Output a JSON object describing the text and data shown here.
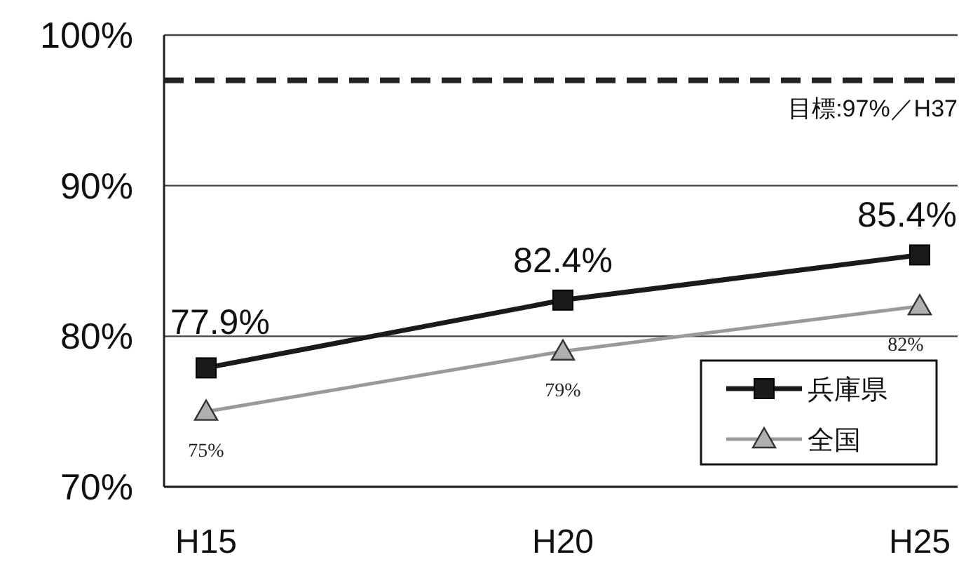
{
  "chart_data": {
    "type": "line",
    "categories": [
      "H15",
      "H20",
      "H25"
    ],
    "series": [
      {
        "name": "兵庫県",
        "color": "#1a1a1a",
        "marker": "square",
        "values": [
          77.9,
          82.4,
          85.4
        ],
        "value_labels": [
          "77.9%",
          "82.4%",
          "85.4%"
        ]
      },
      {
        "name": "全国",
        "color": "#9a9a9a",
        "marker": "triangle",
        "values": [
          75,
          79,
          82
        ],
        "value_labels": [
          "75%",
          "79%",
          "82%"
        ]
      }
    ],
    "ylim": [
      70,
      100
    ],
    "yticks": [
      {
        "value": 70,
        "label": "70%"
      },
      {
        "value": 80,
        "label": "80%"
      },
      {
        "value": 90,
        "label": "90%"
      },
      {
        "value": 100,
        "label": "100%"
      }
    ],
    "grid": "y",
    "legend": "bottom right",
    "ref_lines": [
      {
        "axis": "y",
        "value": 97,
        "label": "目標:97%／H37",
        "line_style": "dashed",
        "color": "#222222"
      }
    ]
  }
}
